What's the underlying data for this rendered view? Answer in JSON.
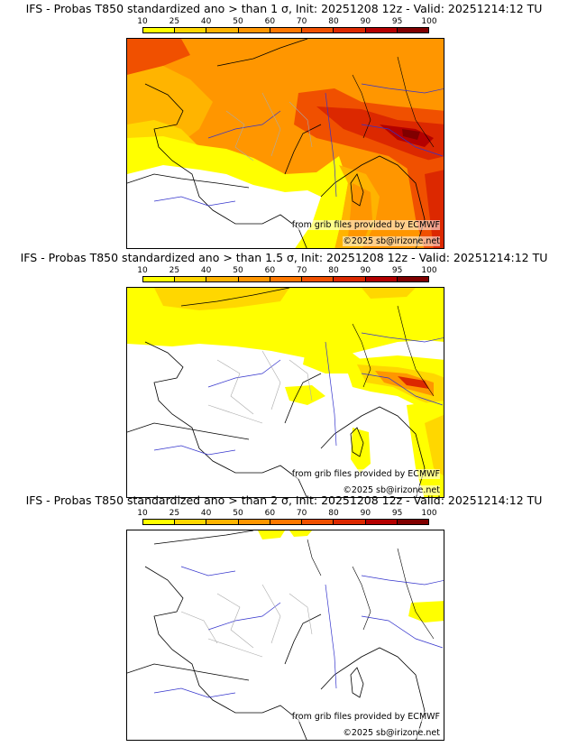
{
  "panels": [
    {
      "title": "IFS - Probas T850  standardized ano > than 1 σ, Init: 20251208 12z - Valid: 20251214:12 TU"
    },
    {
      "title": "IFS - Probas T850  standardized ano > than 1.5 σ, Init: 20251208 12z - Valid: 20251214:12 TU"
    },
    {
      "title": "IFS - Probas T850  standardized ano > than 2 σ, Init: 20251208 12z - Valid: 20251214:12 TU"
    }
  ],
  "colorbar": {
    "levels": [
      "10",
      "25",
      "40",
      "50",
      "60",
      "70",
      "80",
      "90",
      "95",
      "100"
    ],
    "colors": [
      "#ffff00",
      "#ffd700",
      "#ffb400",
      "#ff9600",
      "#ff7800",
      "#f05000",
      "#dc2800",
      "#b40000",
      "#800000"
    ]
  },
  "credits": {
    "source": "from grib files provided by ECMWF",
    "copyright": "©2025 sb@irizone.net"
  },
  "map_colors": {
    "land_border": "#000000",
    "rivers": "#3333cc",
    "admin": "#aaaaaa"
  }
}
